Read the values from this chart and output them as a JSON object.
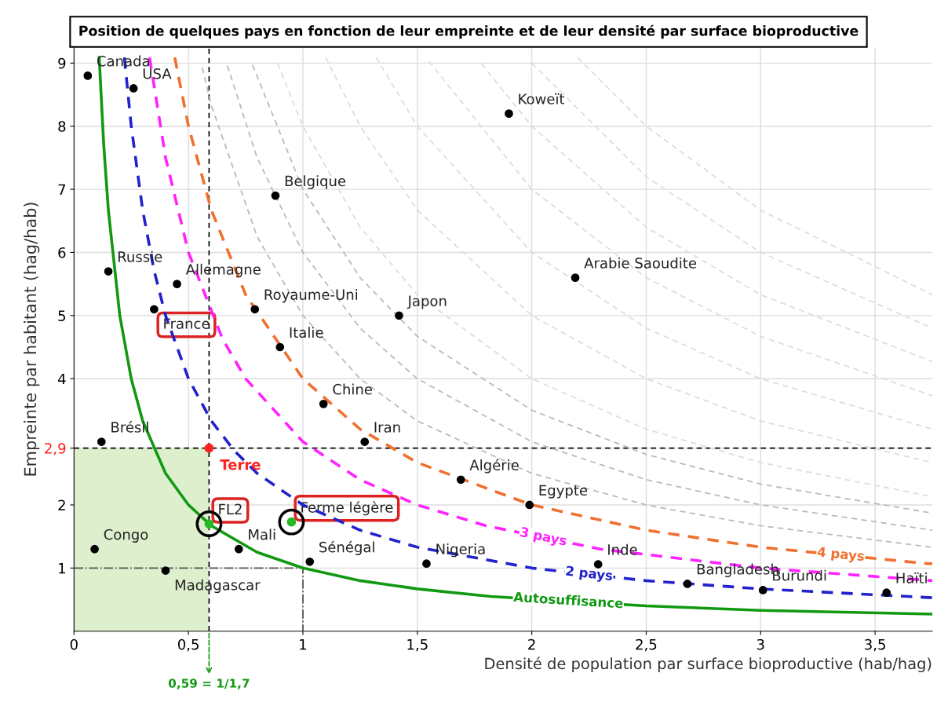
{
  "chart_data": {
    "type": "scatter",
    "title": "Position de quelques pays en fonction de leur empreinte et de leur densité par surface bioproductive",
    "xlabel": "Densité de population par surface bioproductive (hab/hag)",
    "ylabel": "Empreinte par habitant (hag/hab)",
    "xlim": [
      0,
      3.75
    ],
    "ylim": [
      0,
      9.25
    ],
    "xticks": [
      0,
      {
        "value": 0.5,
        "label": "0,5"
      },
      1,
      {
        "value": 1.5,
        "label": "1,5"
      },
      2,
      {
        "value": 2.5,
        "label": "2,5"
      },
      3,
      {
        "value": 3.5,
        "label": "3,5"
      }
    ],
    "yticks": [
      1,
      2,
      {
        "value": 2.9,
        "label": "2,9"
      },
      4,
      5,
      6,
      7,
      8,
      9
    ],
    "grid": true,
    "legend": false,
    "series": [
      {
        "marker": "circle",
        "color": "#000000",
        "x": [
          0.06,
          0.26,
          1.9,
          0.88,
          2.19,
          0.15,
          0.45,
          0.35,
          0.79,
          1.42,
          0.9,
          1.09,
          1.27,
          0.12,
          1.69,
          1.99,
          0.09,
          0.72,
          1.03,
          1.54,
          2.29,
          0.4,
          2.68,
          3.01,
          3.55
        ],
        "values": [
          8.8,
          8.6,
          8.2,
          6.9,
          5.6,
          5.7,
          5.5,
          5.1,
          5.1,
          5.0,
          4.5,
          3.6,
          3.0,
          3.0,
          2.4,
          2.0,
          1.3,
          1.3,
          1.1,
          1.07,
          1.06,
          0.96,
          0.75,
          0.65,
          0.61
        ]
      },
      {
        "marker": "circle",
        "name": "Terre",
        "color": "#ff2020",
        "x": [
          0.59
        ],
        "values": [
          2.9
        ]
      },
      {
        "marker": "circle",
        "color": "#22bb22",
        "x": [
          0.59,
          0.95
        ],
        "values": [
          1.7,
          1.73
        ]
      },
      {
        "type": "area",
        "color": "#ddefcc",
        "x": [
          0,
          0.59
        ],
        "values": [
          2.9,
          2.9
        ]
      },
      {
        "type": "line",
        "color": "#555555",
        "line_style": "dashdot",
        "x": [
          0,
          1,
          1
        ],
        "values": [
          1,
          1,
          0
        ]
      },
      {
        "type": "line",
        "color": "#bbbbbb",
        "line_style": "dashed",
        "x": [
          0.56,
          0.6,
          0.8,
          1,
          1.25,
          1.5,
          2,
          2.5,
          3,
          3.75
        ],
        "values": [
          8.93,
          8.33,
          6.25,
          5,
          4,
          3.33,
          2.5,
          2,
          1.67,
          1.33
        ]
      },
      {
        "type": "line",
        "color": "#bbbbbb",
        "line_style": "dashed",
        "x": [
          0.67,
          0.8,
          1,
          1.25,
          1.5,
          2,
          2.5,
          3,
          3.75
        ],
        "values": [
          8.96,
          7.5,
          6,
          4.8,
          4,
          3,
          2.4,
          2,
          1.6
        ]
      },
      {
        "type": "line",
        "color": "#bbbbbb",
        "line_style": "dashed",
        "x": [
          0.78,
          1,
          1.25,
          1.5,
          2,
          2.5,
          3,
          3.75
        ],
        "values": [
          8.97,
          7,
          5.6,
          4.67,
          3.5,
          2.8,
          2.33,
          1.87
        ]
      },
      {
        "type": "line",
        "color": "#dddddd",
        "line_style": "dashed",
        "x": [
          0.89,
          1,
          1.25,
          1.5,
          2,
          2.5,
          3,
          3.75
        ],
        "values": [
          8.99,
          8,
          6.4,
          5.33,
          4,
          3.2,
          2.67,
          2.13
        ]
      },
      {
        "type": "line",
        "color": "#dddddd",
        "line_style": "dashed",
        "x": [
          1.1,
          1.25,
          1.5,
          2,
          2.5,
          3,
          3.75
        ],
        "values": [
          9.09,
          8,
          6.67,
          5,
          4,
          3.33,
          2.67
        ]
      },
      {
        "type": "line",
        "color": "#dddddd",
        "line_style": "dashed",
        "x": [
          1.32,
          1.5,
          2,
          2.5,
          3,
          3.75
        ],
        "values": [
          9.09,
          8,
          6,
          4.8,
          4,
          3.2
        ]
      },
      {
        "type": "line",
        "color": "#dddddd",
        "line_style": "dashed",
        "x": [
          1.55,
          2,
          2.5,
          3,
          3.75
        ],
        "values": [
          9.03,
          7,
          5.6,
          4.67,
          3.73
        ]
      },
      {
        "type": "line",
        "color": "#dddddd",
        "line_style": "dashed",
        "x": [
          1.78,
          2,
          2.5,
          3,
          3.75
        ],
        "values": [
          8.99,
          8,
          6.4,
          5.33,
          4.27
        ]
      },
      {
        "type": "line",
        "color": "#dddddd",
        "line_style": "dashed",
        "x": [
          2,
          2.5,
          3,
          3.75
        ],
        "values": [
          9,
          7.2,
          6,
          4.8
        ]
      },
      {
        "type": "line",
        "color": "#dddddd",
        "line_style": "dashed",
        "x": [
          2.2,
          2.5,
          3,
          3.75
        ],
        "values": [
          9.09,
          8,
          6.67,
          5.33
        ]
      },
      {
        "type": "line",
        "name": "4 pays",
        "color": "#f07030",
        "line_style": "dashed",
        "x": [
          0.44,
          0.5,
          0.6,
          0.75,
          1,
          1.25,
          1.5,
          2,
          2.5,
          3,
          3.7,
          3.73,
          3.75
        ],
        "values": [
          9.09,
          8,
          6.67,
          5.33,
          4,
          3.2,
          2.67,
          2,
          1.6,
          1.33,
          1.08,
          1.07,
          1.07
        ]
      },
      {
        "type": "line",
        "name": "3 pays",
        "color": "#ff22ff",
        "line_style": "dashed",
        "x": [
          0.33,
          0.4,
          0.5,
          0.65,
          0.75,
          1,
          1.25,
          1.5,
          1.8,
          2.3,
          3,
          3.75
        ],
        "values": [
          9.09,
          7.5,
          6,
          4.62,
          4,
          3,
          2.4,
          2,
          1.67,
          1.3,
          1,
          0.8
        ]
      },
      {
        "type": "line",
        "name": "2 pays",
        "color": "#2222cc",
        "line_style": "dashed",
        "x": [
          0.22,
          0.25,
          0.3,
          0.35,
          0.4,
          0.5,
          0.6,
          0.7,
          0.8,
          1,
          1.25,
          1.5,
          2,
          2.5,
          3,
          3.75
        ],
        "values": [
          9.09,
          8,
          6.67,
          5.71,
          5,
          4,
          3.33,
          2.86,
          2.5,
          2,
          1.6,
          1.33,
          1,
          0.8,
          0.67,
          0.53
        ]
      },
      {
        "type": "line",
        "name": "Autosuffisance",
        "color": "#119911",
        "line_style": "solid",
        "x": [
          0.11,
          0.13,
          0.15,
          0.2,
          0.25,
          0.3,
          0.4,
          0.5,
          0.6,
          0.8,
          1,
          1.25,
          1.5,
          1.82,
          2.5,
          3,
          3.75
        ],
        "values": [
          9.09,
          7.69,
          6.67,
          5,
          4,
          3.33,
          2.5,
          2,
          1.67,
          1.25,
          1,
          0.8,
          0.67,
          0.55,
          0.4,
          0.33,
          0.27
        ]
      }
    ],
    "ref_lines": [
      {
        "axis": "y",
        "value": 2.9,
        "color": "#000000",
        "line_style": "dashed"
      },
      {
        "axis": "x",
        "value": 0.59,
        "label": "0,59 = 1/1,7",
        "color": "#000000",
        "line_style": "dashed"
      }
    ],
    "annotations": [
      {
        "text": "Canada",
        "x": 0.06,
        "y": 8.8
      },
      {
        "text": "USA",
        "x": 0.26,
        "y": 8.6
      },
      {
        "text": "Koweït",
        "x": 1.9,
        "y": 8.2
      },
      {
        "text": "Belgique",
        "x": 0.88,
        "y": 6.9
      },
      {
        "text": "Arabie Saoudite",
        "x": 2.19,
        "y": 5.6
      },
      {
        "text": "Russie",
        "x": 0.15,
        "y": 5.7
      },
      {
        "text": "Allemagne",
        "x": 0.45,
        "y": 5.5
      },
      {
        "text": "France",
        "x": 0.35,
        "y": 5.1
      },
      {
        "text": "Royaume-Uni",
        "x": 0.79,
        "y": 5.1
      },
      {
        "text": "Japon",
        "x": 1.42,
        "y": 5.0
      },
      {
        "text": "Italie",
        "x": 0.9,
        "y": 4.5
      },
      {
        "text": "Chine",
        "x": 1.09,
        "y": 3.6
      },
      {
        "text": "Iran",
        "x": 1.27,
        "y": 3.0
      },
      {
        "text": "Brésil",
        "x": 0.12,
        "y": 3.0
      },
      {
        "text": "Algérie",
        "x": 1.69,
        "y": 2.4
      },
      {
        "text": "Egypte",
        "x": 1.99,
        "y": 2.0
      },
      {
        "text": "Congo",
        "x": 0.09,
        "y": 1.3
      },
      {
        "text": "Mali",
        "x": 0.72,
        "y": 1.3
      },
      {
        "text": "Sénégal",
        "x": 1.03,
        "y": 1.1
      },
      {
        "text": "Nigeria",
        "x": 1.54,
        "y": 1.07
      },
      {
        "text": "Inde",
        "x": 2.29,
        "y": 1.06
      },
      {
        "text": "Madagascar",
        "x": 0.4,
        "y": 0.96
      },
      {
        "text": "Bangladesh",
        "x": 2.68,
        "y": 0.75
      },
      {
        "text": "Burundi",
        "x": 3.01,
        "y": 0.65
      },
      {
        "text": "Haïti",
        "x": 3.55,
        "y": 0.61
      },
      {
        "text": "FL2",
        "x": 0.59,
        "y": 1.7
      },
      {
        "text": "Ferme légère",
        "x": 0.95,
        "y": 1.73
      }
    ]
  }
}
